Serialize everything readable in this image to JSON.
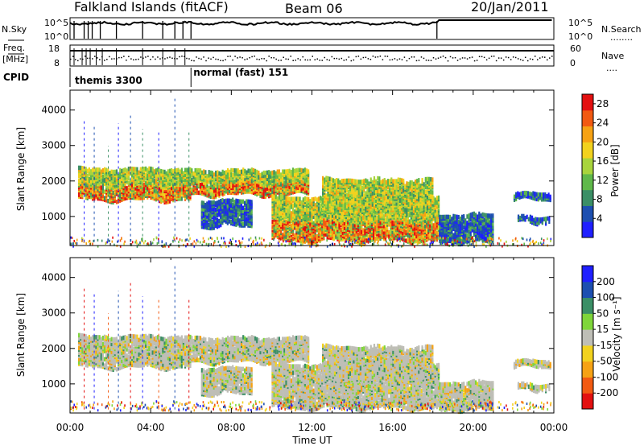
{
  "header": {
    "station": "Falkland Islands (fitACF)",
    "beam": "Beam 06",
    "date": "20/Jan/2011"
  },
  "strip_labels": {
    "nsky": "N.Sky",
    "nsearch": "N.Search",
    "nsearch_dots": "........",
    "freq_top": "Freq.",
    "freq_unit": "[MHz]",
    "nave": "Nave",
    "nave_dots": "....",
    "cpid": "CPID",
    "noise_tick_top": "10^5",
    "noise_tick_bottom": "10^0",
    "freq_tick_top": "18",
    "freq_tick_bottom": "8",
    "nave_tick_top": "60",
    "nave_tick_bottom": "0"
  },
  "cpid_modes": [
    {
      "label": "themis 3300",
      "start_hour": 0.0
    },
    {
      "label": "normal (fast) 151",
      "start_hour": 6.0
    }
  ],
  "chart_data": [
    {
      "type": "heatmap",
      "title": "",
      "ylabel": "Slant Range [km]",
      "yticks": [
        "1000",
        "2000",
        "3000",
        "4000"
      ],
      "ylim": [
        180,
        4560
      ],
      "xlim": [
        0,
        24
      ],
      "colorbar_label": "Power [dB]",
      "colorbar_ticks": [
        "4",
        "8",
        "12",
        "16",
        "20",
        "24",
        "28"
      ],
      "colorbar_range": [
        0,
        30
      ],
      "colorscale": [
        "#1f1fff",
        "#1d4fb0",
        "#3b8f66",
        "#5fb84a",
        "#a8d43c",
        "#f2d21e",
        "#f6a214",
        "#f25a12",
        "#e31010"
      ],
      "echo_regions": [
        {
          "t0": 0.4,
          "t1": 6.0,
          "r0": 1550,
          "r1": 2400,
          "power": "high"
        },
        {
          "t0": 6.0,
          "t1": 11.8,
          "r0": 1700,
          "r1": 2350,
          "power": "high"
        },
        {
          "t0": 6.5,
          "t1": 9.0,
          "r0": 800,
          "r1": 1500,
          "power": "low"
        },
        {
          "t0": 10.0,
          "t1": 18.3,
          "r0": 400,
          "r1": 1600,
          "power": "high"
        },
        {
          "t0": 12.5,
          "t1": 18.0,
          "r0": 1200,
          "r1": 2100,
          "power": "medium"
        },
        {
          "t0": 18.3,
          "t1": 21.0,
          "r0": 350,
          "r1": 1100,
          "power": "low"
        },
        {
          "t0": 22.0,
          "t1": 23.8,
          "r0": 1550,
          "r1": 1700,
          "power": "low"
        },
        {
          "t0": 22.2,
          "t1": 23.8,
          "r0": 900,
          "r1": 1050,
          "power": "low"
        }
      ]
    },
    {
      "type": "heatmap",
      "title": "",
      "xlabel": "Time UT",
      "ylabel": "Slant Range [km]",
      "yticks": [
        "1000",
        "2000",
        "3000",
        "4000"
      ],
      "xticks": [
        "00:00",
        "04:00",
        "08:00",
        "12:00",
        "16:00",
        "20:00",
        "00:00"
      ],
      "ylim": [
        180,
        4560
      ],
      "xlim": [
        0,
        24
      ],
      "colorbar_label": "Velocity [m s⁻¹]",
      "colorbar_ticks": [
        "200",
        "100",
        "50",
        "15",
        "-15",
        "-50",
        "-100",
        "-200"
      ],
      "colorbar_range": [
        -250,
        250
      ],
      "colorscale": [
        "#e31010",
        "#f25a12",
        "#f6a214",
        "#f2d21e",
        "#bebeb6",
        "#7fd63a",
        "#3b8f66",
        "#1d4fb0",
        "#1f1fff"
      ],
      "ground_scatter_color": "#bebeb6"
    }
  ]
}
